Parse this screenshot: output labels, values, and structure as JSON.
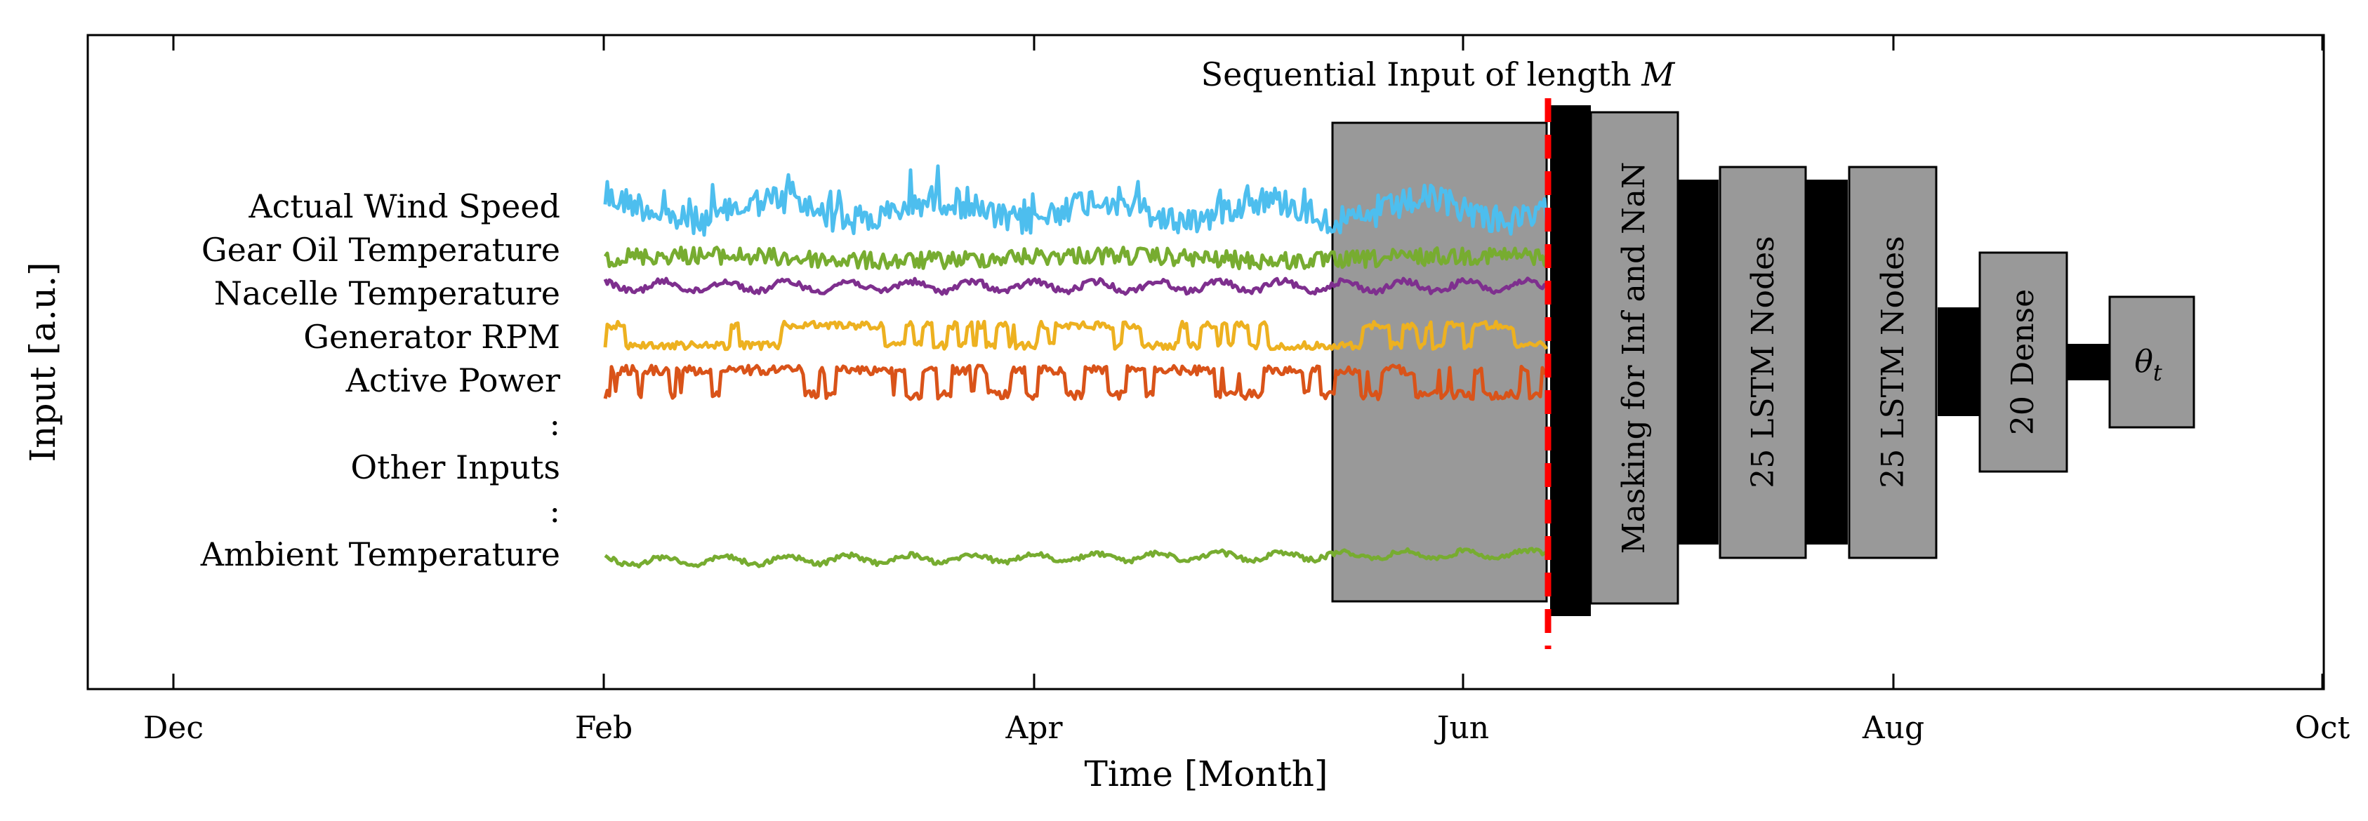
{
  "figure": {
    "xlabel": "Time [Month]",
    "ylabel": "Input [a.u.]",
    "x_ticks": [
      "Dec",
      "Feb",
      "Apr",
      "Jun",
      "Aug",
      "Oct"
    ],
    "window_title": "Sequential Input of length ",
    "window_title_var": "M",
    "signal_labels": [
      "Actual Wind Speed",
      "Gear Oil Temperature",
      "Nacelle Temperature",
      "Generator RPM",
      "Active Power",
      ":",
      "Other Inputs",
      ":",
      "Ambient Temperature"
    ],
    "network_blocks": [
      "Masking for Inf and NaN",
      "25 LSTM Nodes",
      "25 LSTM Nodes",
      "20 Dense"
    ],
    "output_symbol": "θ",
    "output_subscript": "t"
  },
  "colors": {
    "wind_speed": "#4DBEEE",
    "gear_oil": "#77AC30",
    "nacelle": "#7E2F8E",
    "generator_rpm": "#EDB120",
    "active_power": "#D95319",
    "ambient": "#77AC30",
    "window_fill": "#999999",
    "block_fill": "#999999",
    "connector": "#000000",
    "cutoff_line": "#FF0000"
  }
}
